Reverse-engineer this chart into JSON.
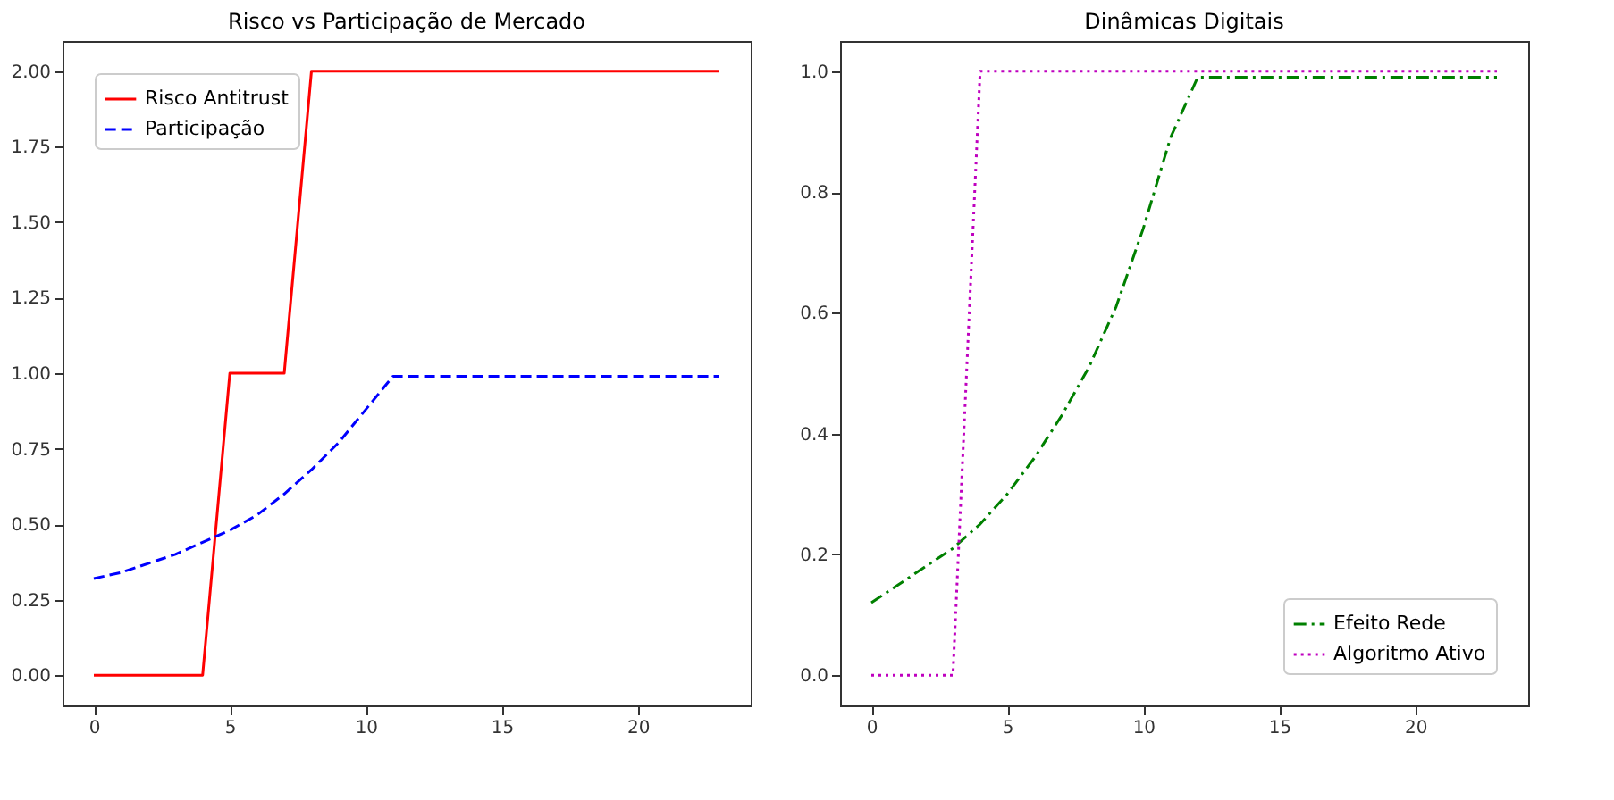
{
  "chart_data": [
    {
      "type": "line",
      "title": "Risco vs Participação de Mercado",
      "x": [
        0,
        1,
        2,
        3,
        4,
        5,
        6,
        7,
        8,
        9,
        10,
        11,
        12,
        13,
        14,
        15,
        16,
        17,
        18,
        19,
        20,
        21,
        22,
        23
      ],
      "xlim": [
        -1.15,
        24.15
      ],
      "xticks": [
        0,
        5,
        10,
        15,
        20
      ],
      "ylim": [
        -0.1,
        2.1
      ],
      "yticks": [
        {
          "value": 0,
          "label": "0.00"
        },
        0.25,
        {
          "value": 0.5,
          "label": "0.50"
        },
        0.75,
        {
          "value": 1,
          "label": "1.00"
        },
        1.25,
        {
          "value": 1.5,
          "label": "1.50"
        },
        1.75,
        {
          "value": 2,
          "label": "2.00"
        }
      ],
      "grid": false,
      "legend": "top left",
      "marker": "none",
      "series": [
        {
          "name": "Risco Antitrust",
          "color": "#ff0000",
          "line_style": "solid",
          "values": [
            0,
            0,
            0,
            0,
            0,
            1,
            1,
            1,
            2,
            2,
            2,
            2,
            2,
            2,
            2,
            2,
            2,
            2,
            2,
            2,
            2,
            2,
            2,
            2
          ]
        },
        {
          "name": "Participação",
          "color": "#0000ff",
          "line_style": "dashed",
          "values": [
            0.32,
            0.34,
            0.37,
            0.4,
            0.44,
            0.48,
            0.53,
            0.6,
            0.68,
            0.77,
            0.88,
            0.99,
            0.99,
            0.99,
            0.99,
            0.99,
            0.99,
            0.99,
            0.99,
            0.99,
            0.99,
            0.99,
            0.99,
            0.99
          ]
        }
      ]
    },
    {
      "type": "line",
      "title": "Dinâmicas Digitais",
      "x": [
        0,
        1,
        2,
        3,
        4,
        5,
        6,
        7,
        8,
        9,
        10,
        11,
        12,
        13,
        14,
        15,
        16,
        17,
        18,
        19,
        20,
        21,
        22,
        23
      ],
      "xlim": [
        -1.15,
        24.15
      ],
      "xticks": [
        0,
        5,
        10,
        15,
        20
      ],
      "ylim": [
        -0.05,
        1.05
      ],
      "yticks": [
        {
          "value": 0,
          "label": "0.0"
        },
        0.2,
        0.4,
        0.6,
        0.8,
        {
          "value": 1,
          "label": "1.0"
        }
      ],
      "grid": false,
      "legend": "bottom right",
      "marker": "none",
      "series": [
        {
          "name": "Efeito Rede",
          "color": "#008000",
          "line_style": "dashdot",
          "values": [
            0.12,
            0.15,
            0.18,
            0.21,
            0.25,
            0.3,
            0.36,
            0.43,
            0.51,
            0.61,
            0.74,
            0.89,
            0.99,
            0.99,
            0.99,
            0.99,
            0.99,
            0.99,
            0.99,
            0.99,
            0.99,
            0.99,
            0.99,
            0.99
          ]
        },
        {
          "name": "Algoritmo Ativo",
          "color": "#bf00bf",
          "line_style": "dotted",
          "values": [
            0,
            0,
            0,
            0,
            1,
            1,
            1,
            1,
            1,
            1,
            1,
            1,
            1,
            1,
            1,
            1,
            1,
            1,
            1,
            1,
            1,
            1,
            1,
            1
          ]
        }
      ]
    }
  ]
}
